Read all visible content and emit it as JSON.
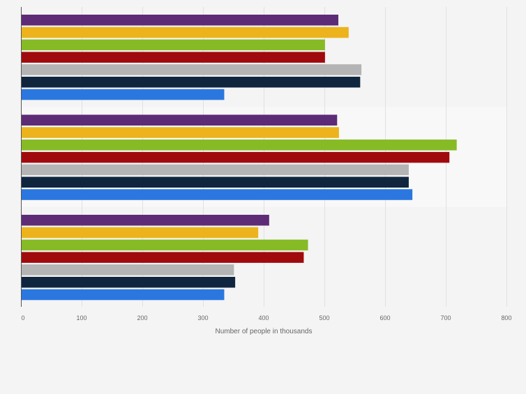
{
  "chart_data": {
    "type": "bar",
    "orientation": "horizontal",
    "title": "",
    "xlabel": "Number of people in thousands",
    "ylabel": "",
    "xlim": [
      0,
      800
    ],
    "x_ticks": [
      0,
      100,
      200,
      300,
      400,
      500,
      600,
      700,
      800
    ],
    "grid": true,
    "legend": "none",
    "categories": [
      "",
      "",
      ""
    ],
    "series": [
      {
        "name": "",
        "color": "#5e2b77",
        "values": [
          523,
          521,
          409
        ]
      },
      {
        "name": "",
        "color": "#ecb31c",
        "values": [
          540,
          524,
          391
        ]
      },
      {
        "name": "",
        "color": "#86bb25",
        "values": [
          501,
          718,
          473
        ]
      },
      {
        "name": "",
        "color": "#a10a0d",
        "values": [
          501,
          706,
          466
        ]
      },
      {
        "name": "",
        "color": "#b4b4b4",
        "values": [
          561,
          639,
          351
        ]
      },
      {
        "name": "",
        "color": "#10263f",
        "values": [
          559,
          639,
          353
        ]
      },
      {
        "name": "",
        "color": "#2b77e0",
        "values": [
          335,
          645,
          335
        ]
      }
    ]
  }
}
